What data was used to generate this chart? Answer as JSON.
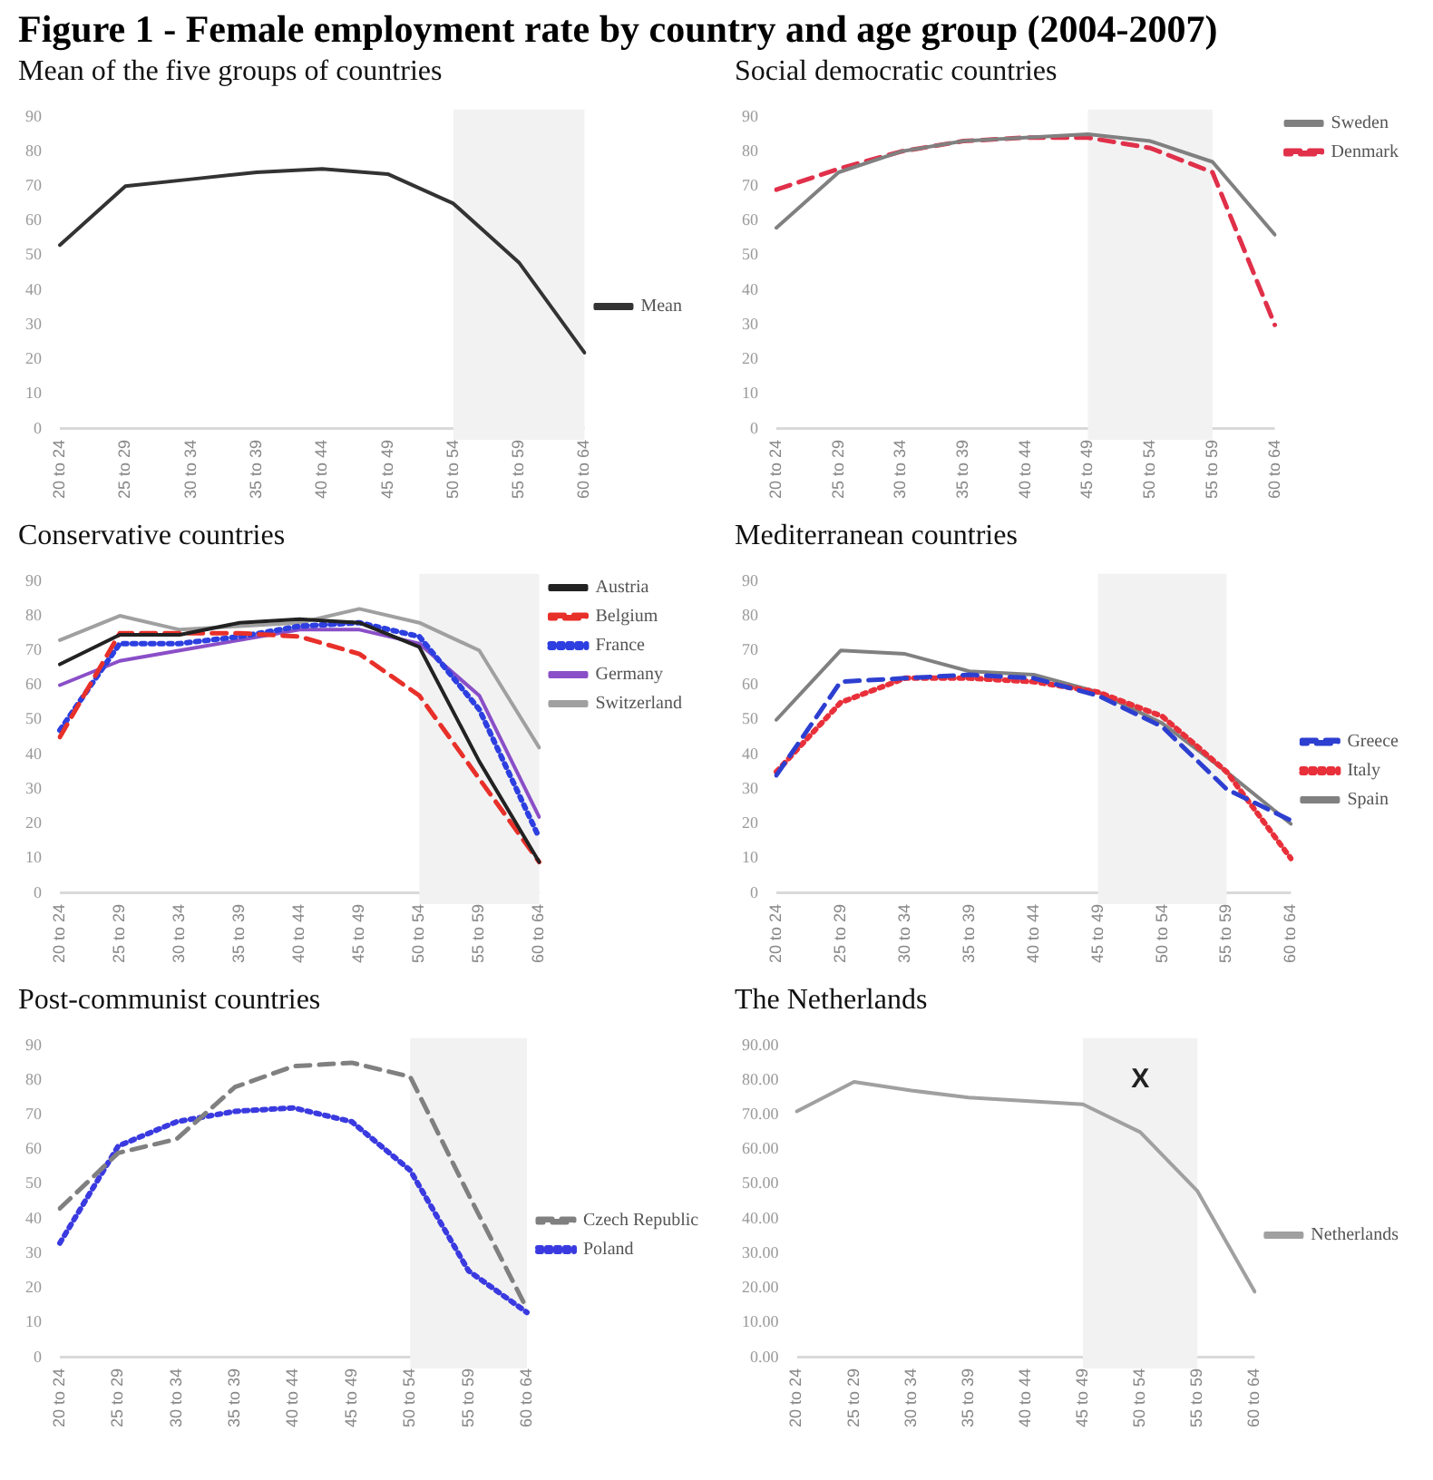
{
  "chart_data": [
    {
      "type": "line",
      "title": "Figure 1 - Female employment rate by country and age group (2004-2007)",
      "subtitle": "Mean of the five groups of countries",
      "categories": [
        "20 to 24",
        "25 to 29",
        "30 to 34",
        "35 to 39",
        "40 to 44",
        "45 to 49",
        "50 to 54",
        "55 to 59",
        "60 to 64"
      ],
      "series": [
        {
          "name": "Mean",
          "color": "#333333",
          "line_style": "solid",
          "values": [
            53,
            70,
            72,
            74,
            75,
            73.5,
            65,
            48,
            22
          ]
        }
      ],
      "ylim": [
        0,
        90
      ],
      "yticks": [
        0,
        10,
        20,
        30,
        40,
        50,
        60,
        70,
        80,
        90
      ],
      "grid": false,
      "legend": "right",
      "marker": "none",
      "bands": [
        {
          "axis": "x",
          "from": "50 to 54",
          "to": "60 to 64",
          "color": "#f2f2f2"
        }
      ]
    },
    {
      "type": "line",
      "title": "Social democratic countries",
      "categories": [
        "20 to 24",
        "25 to 29",
        "30 to 34",
        "35 to 39",
        "40 to 44",
        "45 to 49",
        "50 to 54",
        "55 to 59",
        "60 to 64"
      ],
      "series": [
        {
          "name": "Sweden",
          "color": "#808080",
          "line_style": "solid",
          "values": [
            58,
            74,
            80,
            83,
            84,
            85,
            83,
            77,
            56
          ]
        },
        {
          "name": "Denmark",
          "color": "#e0304a",
          "line_style": "dashed",
          "values": [
            69,
            75,
            80,
            83,
            84,
            84,
            81,
            74,
            30
          ]
        }
      ],
      "ylim": [
        0,
        90
      ],
      "yticks": [
        0,
        10,
        20,
        30,
        40,
        50,
        60,
        70,
        80,
        90
      ],
      "grid": false,
      "legend": "top right",
      "marker": "none",
      "bands": [
        {
          "axis": "x",
          "from": "45 to 49",
          "to": "55 to 59",
          "color": "#f2f2f2"
        }
      ]
    },
    {
      "type": "line",
      "title": "Conservative countries",
      "categories": [
        "20 to 24",
        "25 to 29",
        "30 to 34",
        "35 to 39",
        "40 to 44",
        "45 to 49",
        "50 to 54",
        "55 to 59",
        "60 to 64"
      ],
      "series": [
        {
          "name": "Austria",
          "color": "#222222",
          "line_style": "solid",
          "values": [
            66,
            74.5,
            74.5,
            78,
            79,
            78,
            71,
            38,
            9
          ]
        },
        {
          "name": "Belgium",
          "color": "#e8302a",
          "line_style": "dashed",
          "values": [
            45,
            75,
            75,
            75,
            74,
            69,
            57,
            33,
            9
          ]
        },
        {
          "name": "France",
          "color": "#2d3fe0",
          "line_style": "dotted",
          "values": [
            47,
            72,
            72,
            74,
            77,
            78,
            74,
            53,
            16
          ]
        },
        {
          "name": "Germany",
          "color": "#8a4fc8",
          "line_style": "solid",
          "values": [
            60,
            67,
            70,
            73,
            76,
            76,
            72,
            57,
            22
          ]
        },
        {
          "name": "Switzerland",
          "color": "#a0a0a0",
          "line_style": "solid",
          "values": [
            73,
            80,
            76,
            77,
            78,
            82,
            78,
            70,
            42
          ]
        }
      ],
      "ylim": [
        0,
        90
      ],
      "yticks": [
        0,
        10,
        20,
        30,
        40,
        50,
        60,
        70,
        80,
        90
      ],
      "grid": false,
      "legend": "top right",
      "marker": "none",
      "bands": [
        {
          "axis": "x",
          "from": "50 to 54",
          "to": "60 to 64",
          "color": "#f2f2f2"
        }
      ]
    },
    {
      "type": "line",
      "title": "Mediterranean countries",
      "categories": [
        "20 to 24",
        "25 to 29",
        "30 to 34",
        "35 to 39",
        "40 to 44",
        "45 to 49",
        "50 to 54",
        "55 to 59",
        "60 to 64"
      ],
      "series": [
        {
          "name": "Greece",
          "color": "#2d3fd0",
          "line_style": "dashed",
          "values": [
            34,
            61,
            62,
            63,
            62,
            57,
            48,
            30,
            21
          ]
        },
        {
          "name": "Italy",
          "color": "#e8303a",
          "line_style": "dotted",
          "values": [
            35,
            55,
            62,
            62,
            61,
            58,
            51,
            35,
            10
          ]
        },
        {
          "name": "Spain",
          "color": "#808080",
          "line_style": "solid",
          "values": [
            50,
            70,
            69,
            64,
            63,
            58,
            49,
            35,
            20
          ]
        }
      ],
      "ylim": [
        0,
        90
      ],
      "yticks": [
        0,
        10,
        20,
        30,
        40,
        50,
        60,
        70,
        80,
        90
      ],
      "grid": false,
      "legend": "right",
      "marker": "none",
      "bands": [
        {
          "axis": "x",
          "from": "45 to 49",
          "to": "55 to 59",
          "color": "#f2f2f2"
        }
      ]
    },
    {
      "type": "line",
      "title": "Post-communist countries",
      "categories": [
        "20 to 24",
        "25 to 29",
        "30 to 34",
        "35 to 39",
        "40 to 44",
        "45 to 49",
        "50 to 54",
        "55 to 59",
        "60 to 64"
      ],
      "series": [
        {
          "name": "Czech Republic",
          "color": "#808080",
          "line_style": "dashed",
          "values": [
            43,
            59,
            63,
            78,
            84,
            85,
            81,
            47,
            14
          ]
        },
        {
          "name": "Poland",
          "color": "#3a3ae0",
          "line_style": "dotted",
          "values": [
            33,
            61,
            68,
            71,
            72,
            68,
            54,
            25,
            13
          ]
        }
      ],
      "ylim": [
        0,
        90
      ],
      "yticks": [
        0,
        10,
        20,
        30,
        40,
        50,
        60,
        70,
        80,
        90
      ],
      "grid": false,
      "legend": "right",
      "marker": "none",
      "bands": [
        {
          "axis": "x",
          "from": "50 to 54",
          "to": "60 to 64",
          "color": "#f2f2f2"
        }
      ]
    },
    {
      "type": "line",
      "title": "The Netherlands",
      "categories": [
        "20 to 24",
        "25 to 29",
        "30 to 34",
        "35 to 39",
        "40 to 44",
        "45 to 49",
        "50 to 54",
        "55 to 59",
        "60 to 64"
      ],
      "series": [
        {
          "name": "Netherlands",
          "color": "#a0a0a0",
          "line_style": "solid",
          "values": [
            71,
            79.5,
            77,
            75,
            74,
            73,
            65,
            48,
            19
          ]
        }
      ],
      "ylim": [
        0,
        90
      ],
      "yticks": [
        {
          "value": 0,
          "label": "0.00"
        },
        {
          "value": 10,
          "label": "10.00"
        },
        {
          "value": 20,
          "label": "20.00"
        },
        {
          "value": 30,
          "label": "30.00"
        },
        {
          "value": 40,
          "label": "40.00"
        },
        {
          "value": 50,
          "label": "50.00"
        },
        {
          "value": 60,
          "label": "60.00"
        },
        {
          "value": 70,
          "label": "70.00"
        },
        {
          "value": 80,
          "label": "80.00"
        },
        {
          "value": 90,
          "label": "90.00"
        }
      ],
      "grid": false,
      "legend": "right",
      "marker": "none",
      "bands": [
        {
          "axis": "x",
          "from": "45 to 49",
          "to": "55 to 59",
          "color": "#f2f2f2"
        }
      ],
      "annotations": [
        "X"
      ]
    }
  ]
}
